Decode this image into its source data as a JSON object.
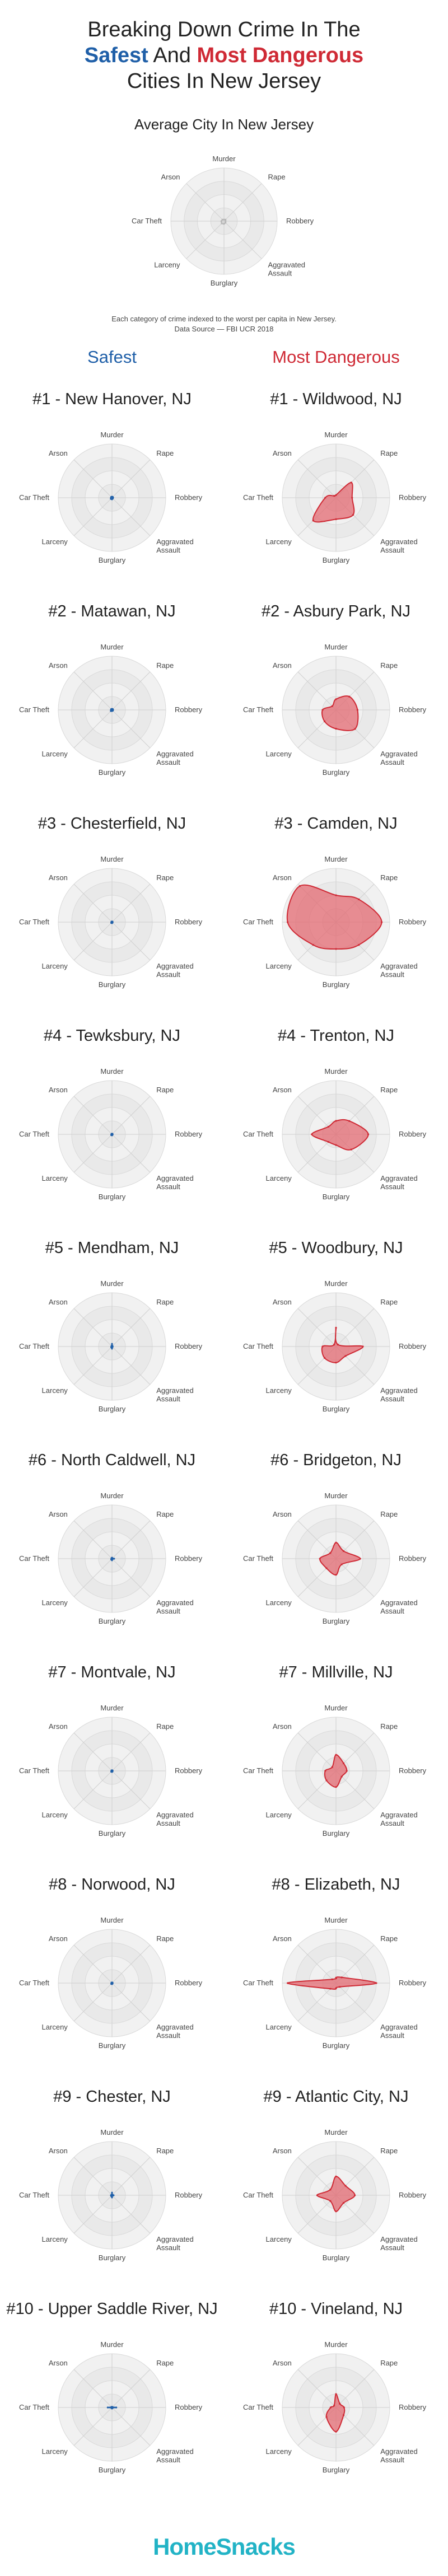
{
  "header": {
    "title_line1": "Breaking Down Crime In The",
    "title_safest": "Safest",
    "title_and": "And",
    "title_most_dangerous": "Most Dangerous",
    "title_line3": "Cities In New Jersey"
  },
  "average": {
    "title": "Average City In New Jersey",
    "note_line1": "Each category of crime indexed to the worst per capita in New Jersey.",
    "note_line2": "Data Source — FBI UCR 2018"
  },
  "columns": {
    "safest": "Safest",
    "most_dangerous": "Most Dangerous"
  },
  "axes": [
    "Murder",
    "Rape",
    "Robbery",
    "Aggravated|Assault",
    "Burglary",
    "Larceny",
    "Car Theft",
    "Arson"
  ],
  "colors": {
    "safe": "#1f5fa8",
    "danger": "#cf2a35",
    "safe_fill": "#9ab8d6",
    "danger_fill": "#e36a72",
    "avg_fill": "#d6d6d6",
    "ring": "#ececec",
    "ring_edge": "#d9d9d9",
    "brand": "#22b3c6"
  },
  "footer": {
    "brand": "HomeSnacks"
  },
  "chart_data": {
    "type": "radar",
    "categories": [
      "Murder",
      "Rape",
      "Robbery",
      "Aggravated Assault",
      "Burglary",
      "Larceny",
      "Car Theft",
      "Arson"
    ],
    "scale": [
      0,
      1
    ],
    "average": {
      "name": "Average City In New Jersey",
      "values": [
        0.03,
        0.04,
        0.03,
        0.04,
        0.05,
        0.06,
        0.05,
        0.04
      ]
    },
    "safest": [
      {
        "name": "#1 - New Hanover, NJ",
        "values": [
          0.02,
          0.02,
          0.02,
          0.02,
          0.03,
          0.03,
          0.02,
          0.02
        ]
      },
      {
        "name": "#2 - Matawan, NJ",
        "values": [
          0.02,
          0.02,
          0.02,
          0.02,
          0.02,
          0.03,
          0.02,
          0.02
        ]
      },
      {
        "name": "#3 - Chesterfield, NJ",
        "values": [
          0.01,
          0.01,
          0.01,
          0.01,
          0.02,
          0.02,
          0.01,
          0.01
        ]
      },
      {
        "name": "#4 - Tewksbury, NJ",
        "values": [
          0.01,
          0.01,
          0.01,
          0.01,
          0.02,
          0.02,
          0.01,
          0.01
        ]
      },
      {
        "name": "#5 - Mendham, NJ",
        "values": [
          0.05,
          0.01,
          0.01,
          0.01,
          0.04,
          0.02,
          0.01,
          0.01
        ]
      },
      {
        "name": "#6 - North Caldwell, NJ",
        "values": [
          0.02,
          0.01,
          0.04,
          0.01,
          0.03,
          0.02,
          0.01,
          0.01
        ]
      },
      {
        "name": "#7 - Montvale, NJ",
        "values": [
          0.01,
          0.01,
          0.01,
          0.01,
          0.02,
          0.02,
          0.01,
          0.01
        ]
      },
      {
        "name": "#8 - Norwood, NJ",
        "values": [
          0.01,
          0.01,
          0.01,
          0.01,
          0.02,
          0.02,
          0.01,
          0.01
        ]
      },
      {
        "name": "#9 - Chester, NJ",
        "values": [
          0.05,
          0.01,
          0.03,
          0.01,
          0.04,
          0.02,
          0.02,
          0.01
        ]
      },
      {
        "name": "#10 - Upper Saddle River, NJ",
        "values": [
          0.01,
          0.01,
          0.08,
          0.01,
          0.02,
          0.01,
          0.08,
          0.01
        ]
      }
    ],
    "most_dangerous": [
      {
        "name": "#1 - Wildwood, NJ",
        "values": [
          0.05,
          0.4,
          0.3,
          0.45,
          0.4,
          0.6,
          0.2,
          0.05
        ]
      },
      {
        "name": "#2 - Asbury Park, NJ",
        "values": [
          0.2,
          0.35,
          0.4,
          0.5,
          0.35,
          0.3,
          0.25,
          0.1
        ]
      },
      {
        "name": "#3 - Camden, NJ",
        "values": [
          0.5,
          0.6,
          0.85,
          0.6,
          0.5,
          0.6,
          0.9,
          0.95
        ]
      },
      {
        "name": "#4 - Trenton, NJ",
        "values": [
          0.25,
          0.35,
          0.6,
          0.4,
          0.2,
          0.2,
          0.45,
          0.2
        ]
      },
      {
        "name": "#5 - Woodbury, NJ",
        "values": [
          0.35,
          0.05,
          0.5,
          0.25,
          0.3,
          0.3,
          0.25,
          0.05
        ]
      },
      {
        "name": "#6 - Bridgeton, NJ",
        "values": [
          0.3,
          0.2,
          0.45,
          0.15,
          0.3,
          0.25,
          0.3,
          0.15
        ]
      },
      {
        "name": "#7 - Millville, NJ",
        "values": [
          0.3,
          0.2,
          0.2,
          0.15,
          0.3,
          0.25,
          0.2,
          0.1
        ]
      },
      {
        "name": "#8 - Elizabeth, NJ",
        "values": [
          0.1,
          0.15,
          0.75,
          0.1,
          0.1,
          0.15,
          0.9,
          0.1
        ]
      },
      {
        "name": "#9 - Atlantic City, NJ",
        "values": [
          0.35,
          0.25,
          0.35,
          0.2,
          0.3,
          0.15,
          0.35,
          0.15
        ]
      },
      {
        "name": "#10 - Vineland, NJ",
        "values": [
          0.25,
          0.1,
          0.15,
          0.2,
          0.45,
          0.25,
          0.1,
          0.05
        ]
      }
    ]
  }
}
